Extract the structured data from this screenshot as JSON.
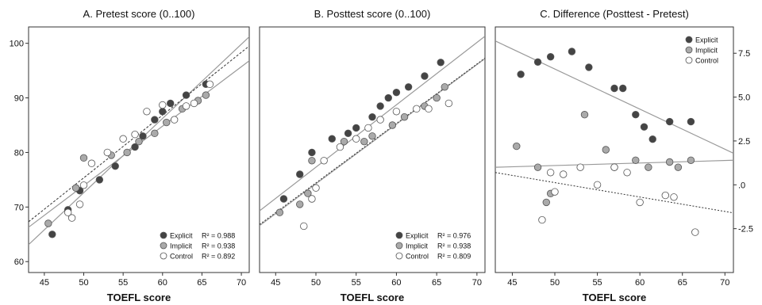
{
  "colors": {
    "explicit": "#444444",
    "implicit": "#aaaaaa",
    "control": "#ffffff",
    "marker_edge": "#555555",
    "fit_line": "#999999",
    "fit_line_dark": "#333333"
  },
  "chart_data": [
    {
      "type": "scatter",
      "title": "A. Pretest score (0..100)",
      "xlabel": "TOEFL score",
      "ylabel": "",
      "xlim": [
        43,
        71
      ],
      "ylim": [
        58,
        103
      ],
      "x_ticks": [
        45,
        50,
        55,
        60,
        65,
        70
      ],
      "y_ticks": [
        60,
        70,
        80,
        90,
        100
      ],
      "y_axis_side": "left",
      "grid": false,
      "legend_position": "bottom-right",
      "legend_shows_r2": true,
      "series": [
        {
          "name": "Explicit",
          "r2_label": "R² = 0.988",
          "color_key": "explicit",
          "points": [
            [
              46,
              65
            ],
            [
              48,
              69.5
            ],
            [
              49.5,
              73
            ],
            [
              52,
              75
            ],
            [
              54,
              77.5
            ],
            [
              56.5,
              81
            ],
            [
              57.5,
              83
            ],
            [
              59,
              86
            ],
            [
              60,
              87.5
            ],
            [
              61,
              89
            ],
            [
              63,
              90.5
            ],
            [
              65.5,
              92.5
            ]
          ],
          "fit": {
            "line_style": "solid",
            "x": [
              43,
              71
            ],
            "y": [
              63.1,
              101.2
            ]
          }
        },
        {
          "name": "Implicit",
          "r2_label": "R² = 0.938",
          "color_key": "implicit",
          "points": [
            [
              45.5,
              67
            ],
            [
              49,
              73.5
            ],
            [
              50,
              79
            ],
            [
              53.5,
              79.5
            ],
            [
              55.5,
              80
            ],
            [
              57,
              82
            ],
            [
              59,
              83.5
            ],
            [
              60.5,
              85.5
            ],
            [
              62.5,
              88
            ],
            [
              64.5,
              89.5
            ],
            [
              65.5,
              90.5
            ]
          ],
          "fit": {
            "line_style": "solid",
            "x": [
              43,
              71
            ],
            "y": [
              66.3,
              96.8
            ]
          }
        },
        {
          "name": "Control",
          "r2_label": "R² = 0.892",
          "color_key": "control",
          "points": [
            [
              48,
              69
            ],
            [
              48.5,
              68
            ],
            [
              49.5,
              70.5
            ],
            [
              50,
              74
            ],
            [
              51,
              78
            ],
            [
              53,
              80
            ],
            [
              55,
              82.5
            ],
            [
              56.5,
              83.3
            ],
            [
              58,
              87.5
            ],
            [
              60,
              88.7
            ],
            [
              61.5,
              86
            ],
            [
              63,
              88.5
            ],
            [
              64,
              89
            ],
            [
              66,
              92.5
            ]
          ],
          "fit": {
            "line_style": "dashed",
            "x": [
              43,
              71
            ],
            "y": [
              67.3,
              99.5
            ]
          }
        }
      ]
    },
    {
      "type": "scatter",
      "title": "B. Posttest score (0..100)",
      "xlabel": "TOEFL score",
      "ylabel": "",
      "xlim": [
        43,
        71
      ],
      "ylim": [
        58,
        103
      ],
      "x_ticks": [
        45,
        50,
        55,
        60,
        65,
        70
      ],
      "y_ticks": [],
      "y_axis_side": "none",
      "grid": false,
      "legend_position": "bottom-right",
      "legend_shows_r2": true,
      "series": [
        {
          "name": "Explicit",
          "r2_label": "R² = 0.976",
          "color_key": "explicit",
          "points": [
            [
              46,
              71.5
            ],
            [
              48,
              76
            ],
            [
              49.5,
              80
            ],
            [
              52,
              82.5
            ],
            [
              54,
              83.5
            ],
            [
              55,
              84.5
            ],
            [
              57,
              86.5
            ],
            [
              58,
              88.5
            ],
            [
              59,
              90
            ],
            [
              60,
              91
            ],
            [
              61.5,
              92
            ],
            [
              63.5,
              94
            ],
            [
              65.5,
              96.5
            ]
          ],
          "fit": {
            "line_style": "solid",
            "x": [
              43,
              71
            ],
            "y": [
              69.3,
              101.3
            ]
          }
        },
        {
          "name": "Implicit",
          "r2_label": "R² = 0.938",
          "color_key": "implicit",
          "points": [
            [
              45.5,
              69
            ],
            [
              48,
              70.5
            ],
            [
              49,
              72.5
            ],
            [
              49.5,
              78.5
            ],
            [
              53.5,
              82
            ],
            [
              56,
              82
            ],
            [
              57,
              83
            ],
            [
              59.5,
              85
            ],
            [
              61,
              86.5
            ],
            [
              63.5,
              88.5
            ],
            [
              65,
              90
            ],
            [
              66,
              92
            ]
          ],
          "fit": {
            "line_style": "solid",
            "x": [
              43,
              71
            ],
            "y": [
              66.6,
              97.2
            ]
          }
        },
        {
          "name": "Control",
          "r2_label": "R² = 0.809",
          "color_key": "control",
          "points": [
            [
              48.5,
              66.5
            ],
            [
              49.5,
              71.5
            ],
            [
              50,
              73.5
            ],
            [
              51,
              78.5
            ],
            [
              53,
              81
            ],
            [
              55,
              82.5
            ],
            [
              56.5,
              84.5
            ],
            [
              58,
              86
            ],
            [
              60,
              87.5
            ],
            [
              62.5,
              88
            ],
            [
              64,
              88
            ],
            [
              66.5,
              89
            ]
          ],
          "fit": {
            "line_style": "dashed",
            "x": [
              43,
              71
            ],
            "y": [
              66.8,
              97.3
            ]
          }
        }
      ]
    },
    {
      "type": "scatter",
      "title": "C. Difference (Posttest - Pretest)",
      "xlabel": "TOEFL score",
      "ylabel": "",
      "xlim": [
        43,
        71
      ],
      "ylim": [
        -5,
        9
      ],
      "x_ticks": [
        45,
        50,
        55,
        60,
        65,
        70
      ],
      "y_ticks": [
        -2.5,
        0,
        2.5,
        5,
        7.5
      ],
      "y_tick_labels": [
        "-2.5",
        ".0",
        "2.5",
        "5.0",
        "7.5"
      ],
      "y_axis_side": "right",
      "grid": false,
      "legend_position": "top-right",
      "legend_shows_r2": false,
      "series": [
        {
          "name": "Explicit",
          "r2_label": "",
          "color_key": "explicit",
          "points": [
            [
              46,
              6.3
            ],
            [
              48,
              7
            ],
            [
              49.5,
              7.3
            ],
            [
              52,
              7.6
            ],
            [
              54,
              6.7
            ],
            [
              57,
              5.5
            ],
            [
              58,
              5.5
            ],
            [
              59.5,
              4
            ],
            [
              60.5,
              3.3
            ],
            [
              61.5,
              2.6
            ],
            [
              63.5,
              3.6
            ],
            [
              66,
              3.6
            ]
          ],
          "fit": {
            "line_style": "solid",
            "x": [
              43,
              71
            ],
            "y": [
              8.2,
              1.8
            ]
          }
        },
        {
          "name": "Implicit",
          "r2_label": "",
          "color_key": "implicit",
          "points": [
            [
              45.5,
              2.2
            ],
            [
              48,
              1
            ],
            [
              49,
              -1
            ],
            [
              49.5,
              -0.5
            ],
            [
              53.5,
              4
            ],
            [
              56,
              2
            ],
            [
              57,
              1
            ],
            [
              59.5,
              1.4
            ],
            [
              61,
              1
            ],
            [
              63.5,
              1.3
            ],
            [
              64.5,
              1
            ],
            [
              66,
              1.4
            ]
          ],
          "fit": {
            "line_style": "solid",
            "x": [
              43,
              71
            ],
            "y": [
              1,
              1.4
            ]
          }
        },
        {
          "name": "Control",
          "r2_label": "",
          "color_key": "control",
          "points": [
            [
              48.5,
              -2
            ],
            [
              49.5,
              0.7
            ],
            [
              50,
              -0.4
            ],
            [
              51,
              0.6
            ],
            [
              53,
              1
            ],
            [
              55,
              0
            ],
            [
              57,
              1
            ],
            [
              58.5,
              0.7
            ],
            [
              60,
              -1
            ],
            [
              63,
              -0.6
            ],
            [
              64,
              -0.7
            ],
            [
              66.5,
              -2.7
            ]
          ],
          "fit": {
            "line_style": "dashed",
            "x": [
              43,
              71
            ],
            "y": [
              0.7,
              -1.6
            ]
          }
        }
      ]
    }
  ]
}
